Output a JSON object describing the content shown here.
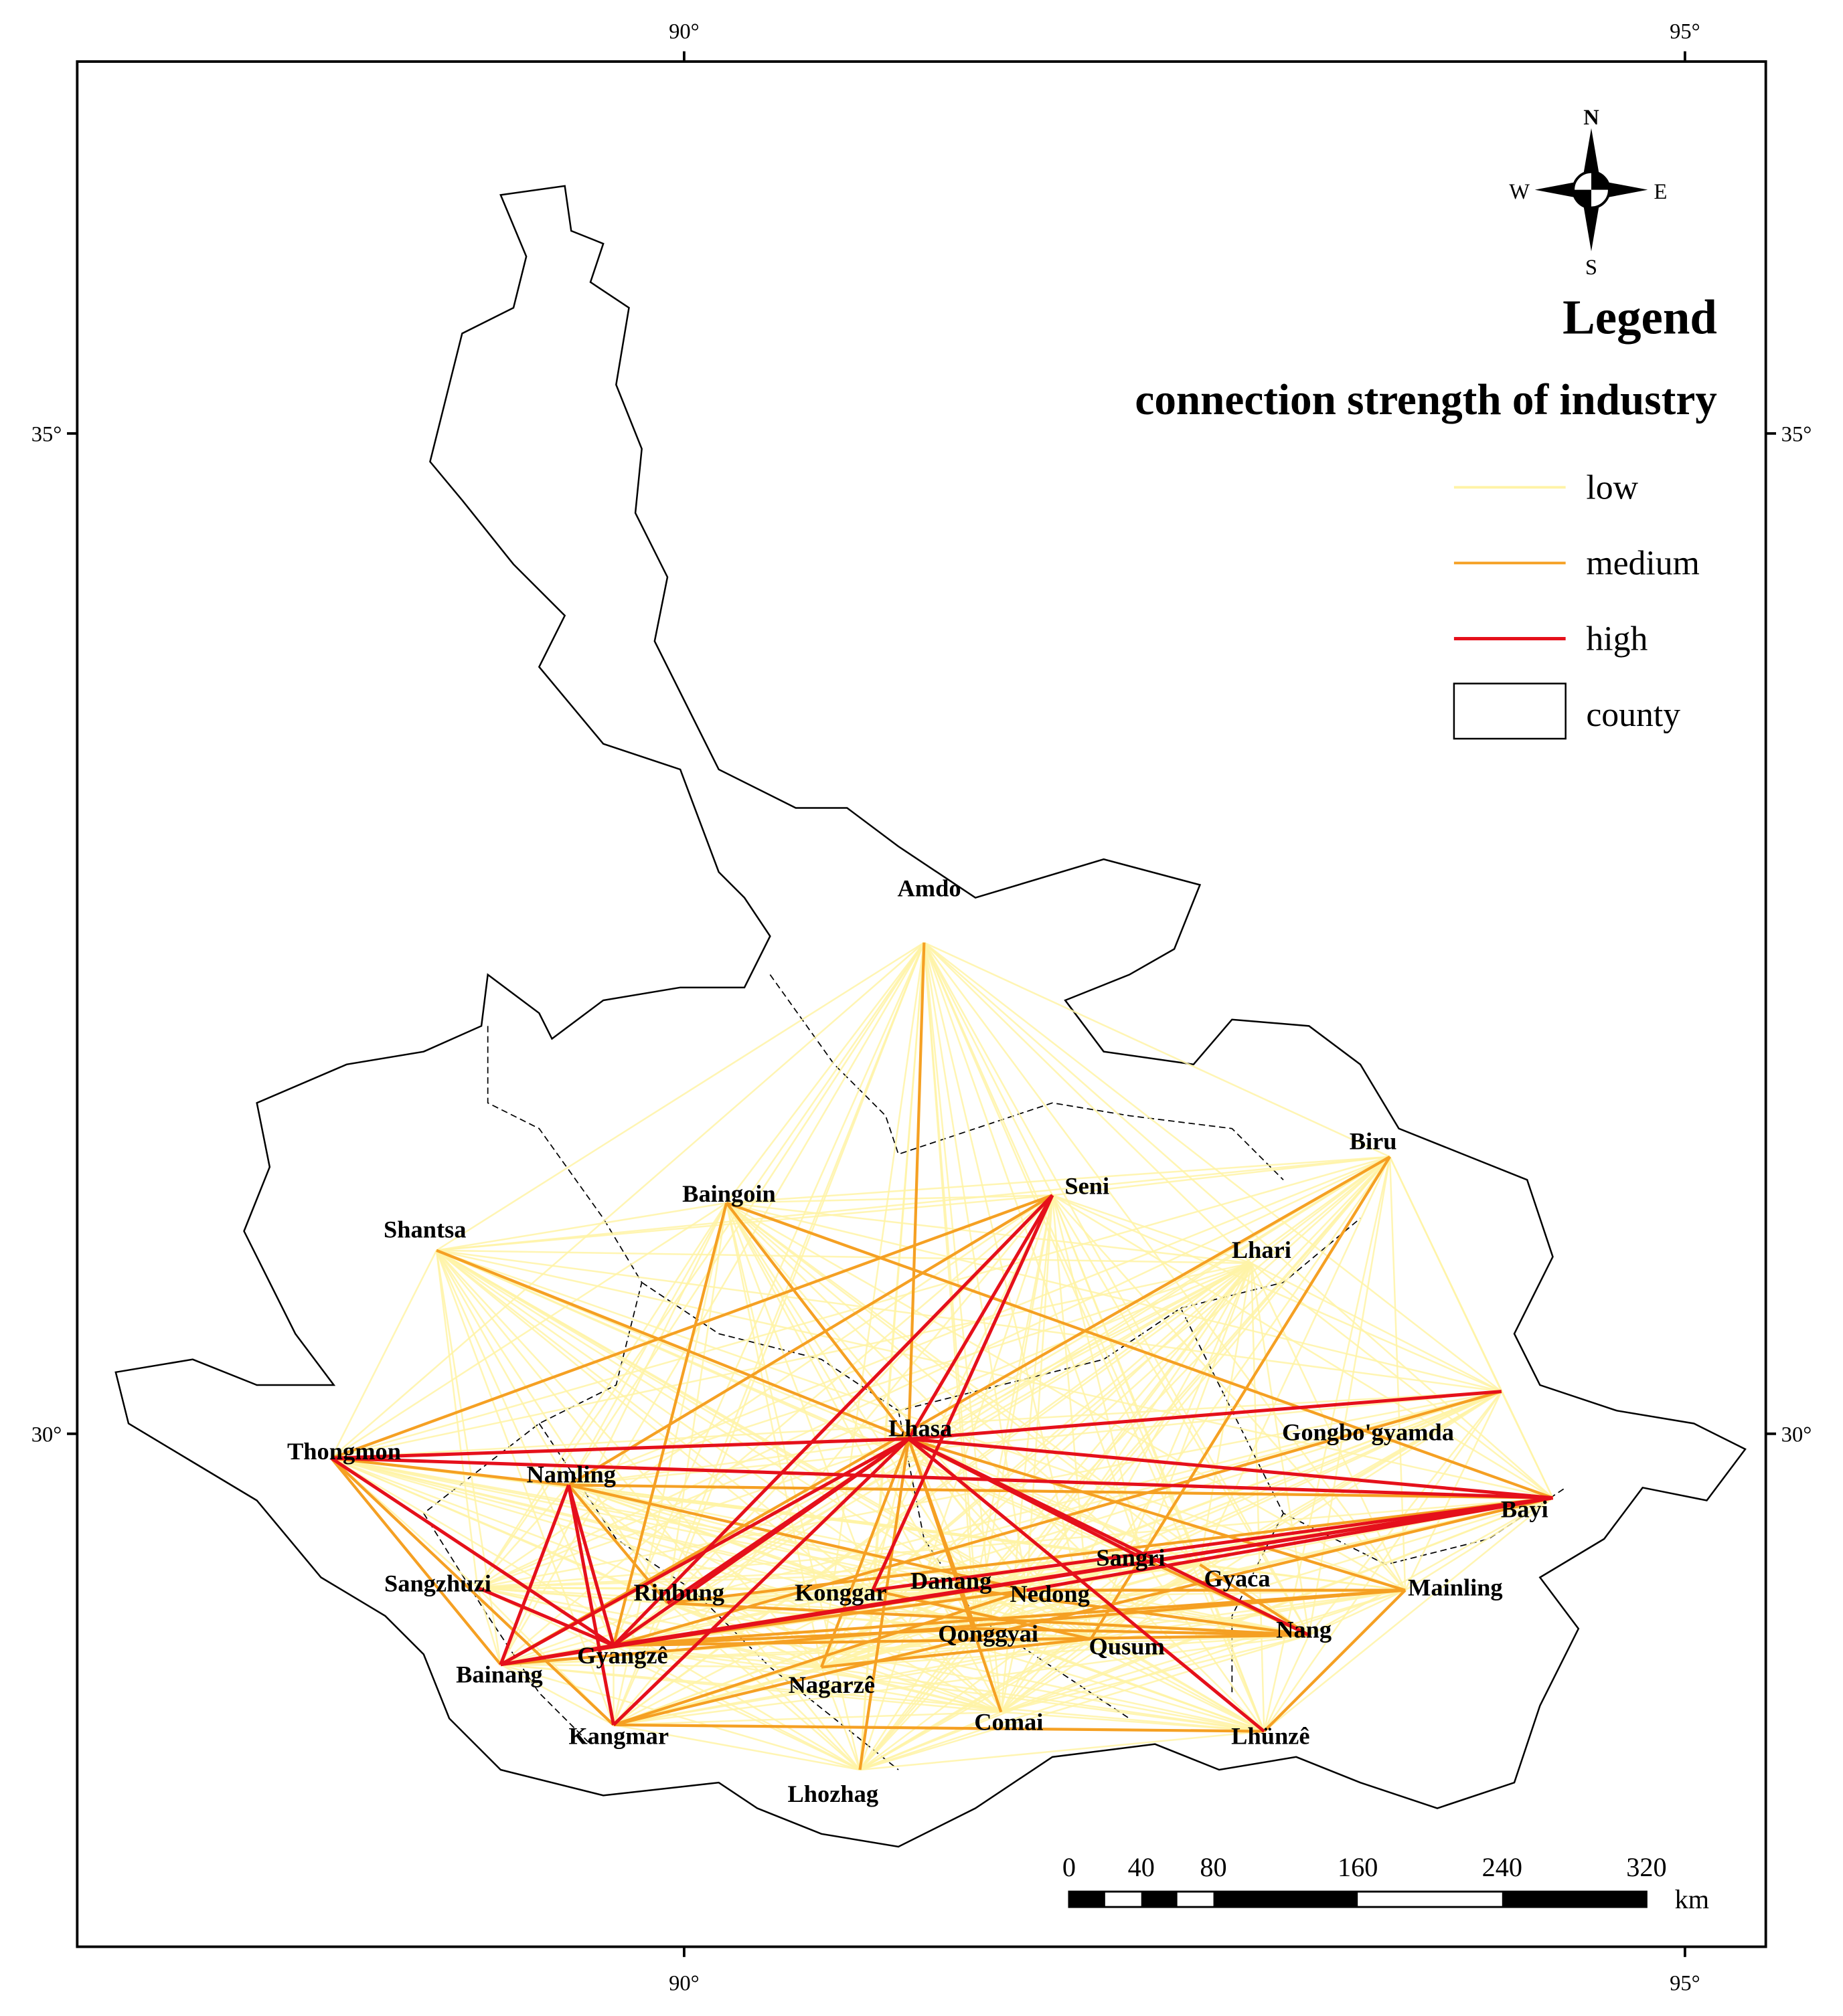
{
  "graticule": {
    "top": [
      "90°",
      "95°"
    ],
    "bottom": [
      "90°",
      "95°"
    ],
    "left": [
      "35°",
      "30°"
    ],
    "right": [
      "35°",
      "30°"
    ]
  },
  "compass": {
    "n": "N",
    "e": "E",
    "s": "S",
    "w": "W"
  },
  "legend": {
    "title": "Legend",
    "subtitle": "connection strength of industry",
    "items": [
      {
        "label": "low",
        "color": "#fff3a6"
      },
      {
        "label": "medium",
        "color": "#f5a023"
      },
      {
        "label": "high",
        "color": "#e5101b"
      },
      {
        "label": "county"
      }
    ]
  },
  "places": [
    "Amdo",
    "Biru",
    "Seni",
    "Baingoin",
    "Shantsa",
    "Lhari",
    "Lhasa",
    "Gongbo'gyamda",
    "Thongmon",
    "Namling",
    "Bayi",
    "Sangri",
    "Gyaca",
    "Sangzhuzi",
    "Rinbung",
    "Konggar",
    "Danang",
    "Nedong",
    "Mainling",
    "Nang",
    "Qonggyai",
    "Qusum",
    "Gyangzê",
    "Bainang",
    "Nagarzê",
    "Comai",
    "Kangmar",
    "Lhünzê",
    "Lhozhag"
  ],
  "scale_bar": {
    "ticks": [
      0,
      40,
      80,
      160,
      240,
      320
    ],
    "unit": "km"
  }
}
